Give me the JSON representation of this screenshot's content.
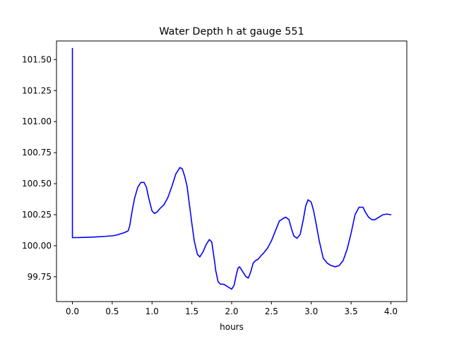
{
  "chart_data": {
    "type": "line",
    "title": "Water Depth h at gauge 551",
    "xlabel": "hours",
    "ylabel": "",
    "xlim": [
      -0.2,
      4.2
    ],
    "ylim": [
      99.55,
      101.65
    ],
    "grid": false,
    "x_ticks": [
      0.0,
      0.5,
      1.0,
      1.5,
      2.0,
      2.5,
      3.0,
      3.5,
      4.0
    ],
    "x_tick_labels": [
      "0.0",
      "0.5",
      "1.0",
      "1.5",
      "2.0",
      "2.5",
      "3.0",
      "3.5",
      "4.0"
    ],
    "y_ticks": [
      99.75,
      100.0,
      100.25,
      100.5,
      100.75,
      101.0,
      101.25,
      101.5
    ],
    "y_tick_labels": [
      "99.75",
      "100.00",
      "100.25",
      "100.50",
      "100.75",
      "101.00",
      "101.25",
      "101.50"
    ],
    "series": [
      {
        "color": "#0000ff",
        "x": [
          0.0,
          0.0,
          0.0,
          0.1,
          0.2,
          0.3,
          0.4,
          0.5,
          0.55,
          0.6,
          0.65,
          0.7,
          0.72,
          0.75,
          0.78,
          0.82,
          0.86,
          0.9,
          0.93,
          0.96,
          1.0,
          1.03,
          1.06,
          1.1,
          1.15,
          1.2,
          1.25,
          1.3,
          1.35,
          1.38,
          1.41,
          1.44,
          1.47,
          1.5,
          1.53,
          1.57,
          1.6,
          1.64,
          1.68,
          1.72,
          1.75,
          1.78,
          1.8,
          1.83,
          1.86,
          1.9,
          1.95,
          2.0,
          2.03,
          2.06,
          2.08,
          2.1,
          2.12,
          2.15,
          2.18,
          2.21,
          2.24,
          2.27,
          2.3,
          2.33,
          2.37,
          2.4,
          2.45,
          2.5,
          2.55,
          2.6,
          2.65,
          2.68,
          2.72,
          2.75,
          2.78,
          2.82,
          2.86,
          2.9,
          2.93,
          2.96,
          3.0,
          3.03,
          3.06,
          3.1,
          3.15,
          3.2,
          3.25,
          3.3,
          3.35,
          3.4,
          3.45,
          3.5,
          3.55,
          3.6,
          3.65,
          3.68,
          3.72,
          3.76,
          3.8,
          3.85,
          3.9,
          3.95,
          4.0
        ],
        "y": [
          101.59,
          100.07,
          100.065,
          100.066,
          100.068,
          100.071,
          100.075,
          100.08,
          100.085,
          100.095,
          100.105,
          100.12,
          100.16,
          100.28,
          100.38,
          100.47,
          100.51,
          100.51,
          100.47,
          100.38,
          100.28,
          100.26,
          100.27,
          100.3,
          100.33,
          100.39,
          100.48,
          100.58,
          100.63,
          100.62,
          100.56,
          100.48,
          100.33,
          100.18,
          100.04,
          99.93,
          99.91,
          99.95,
          100.01,
          100.05,
          100.03,
          99.9,
          99.8,
          99.71,
          99.69,
          99.69,
          99.67,
          99.65,
          99.68,
          99.77,
          99.82,
          99.83,
          99.81,
          99.78,
          99.75,
          99.74,
          99.79,
          99.86,
          99.88,
          99.89,
          99.92,
          99.94,
          99.98,
          100.04,
          100.12,
          100.2,
          100.22,
          100.23,
          100.21,
          100.14,
          100.08,
          100.06,
          100.09,
          100.21,
          100.32,
          100.37,
          100.35,
          100.28,
          100.18,
          100.04,
          99.9,
          99.86,
          99.84,
          99.83,
          99.84,
          99.88,
          99.97,
          100.1,
          100.25,
          100.31,
          100.31,
          100.27,
          100.23,
          100.21,
          100.21,
          100.23,
          100.25,
          100.255,
          100.25
        ]
      }
    ]
  }
}
